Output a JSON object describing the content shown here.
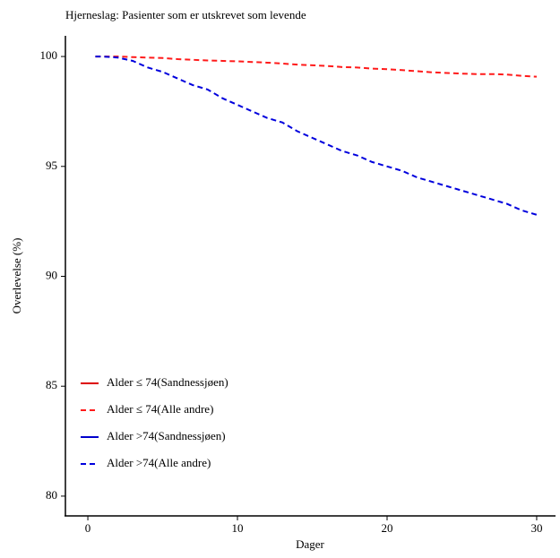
{
  "chart_data": {
    "type": "line",
    "title": "Hjerneslag: Pasienter som er utskrevet som levende",
    "x_label": "Dager",
    "y_label": "Overlevelse (%)",
    "x": [
      0.5,
      1,
      2,
      3,
      4,
      5,
      6,
      7,
      8,
      9,
      10,
      11,
      12,
      13,
      14,
      15,
      16,
      17,
      18,
      19,
      20,
      21,
      22,
      23,
      24,
      25,
      26,
      27,
      28,
      29,
      30
    ],
    "series": [
      {
        "name": "Alder ≤ 74(Sandnessjøen)",
        "color": "#dd0000",
        "linestyle": "solid",
        "values": [
          null,
          null,
          null,
          null,
          null,
          null,
          null,
          null,
          null,
          null,
          null,
          null,
          null,
          null,
          null,
          null,
          null,
          null,
          null,
          null,
          null,
          null,
          null,
          null,
          null,
          null,
          null,
          null,
          null,
          null,
          null
        ]
      },
      {
        "name": "Alder ≤ 74(Alle andre)",
        "color": "#ff1a1a",
        "linestyle": "dashed",
        "values": [
          100,
          100,
          100,
          99.97,
          99.95,
          99.93,
          99.88,
          99.85,
          99.82,
          99.8,
          99.78,
          99.75,
          99.72,
          99.68,
          99.63,
          99.6,
          99.57,
          99.52,
          99.5,
          99.45,
          99.42,
          99.38,
          99.33,
          99.28,
          99.25,
          99.22,
          99.2,
          99.2,
          99.18,
          99.12,
          99.08
        ]
      },
      {
        "name": "Alder >74(Sandnessjøen)",
        "color": "#0000cc",
        "linestyle": "solid",
        "values": [
          null,
          null,
          null,
          null,
          null,
          null,
          null,
          null,
          null,
          null,
          null,
          null,
          null,
          null,
          null,
          null,
          null,
          null,
          null,
          null,
          null,
          null,
          null,
          null,
          null,
          null,
          null,
          null,
          null,
          null,
          null
        ]
      },
      {
        "name": "Alder >74(Alle andre)",
        "color": "#0000dd",
        "linestyle": "dashed",
        "values": [
          100,
          100,
          99.95,
          99.8,
          99.5,
          99.3,
          99.0,
          98.7,
          98.5,
          98.1,
          97.8,
          97.5,
          97.2,
          97.0,
          96.6,
          96.3,
          96.0,
          95.7,
          95.5,
          95.2,
          95.0,
          94.8,
          94.5,
          94.3,
          94.1,
          93.9,
          93.7,
          93.5,
          93.3,
          93.0,
          92.8
        ]
      }
    ],
    "xlim": [
      -1.5,
      31.26
    ],
    "xticks": [
      0,
      10,
      20,
      30
    ],
    "ylim": [
      79.1,
      100.94
    ],
    "yticks": [
      80,
      85,
      90,
      95,
      100
    ],
    "grid": false,
    "legend": "lower left"
  }
}
